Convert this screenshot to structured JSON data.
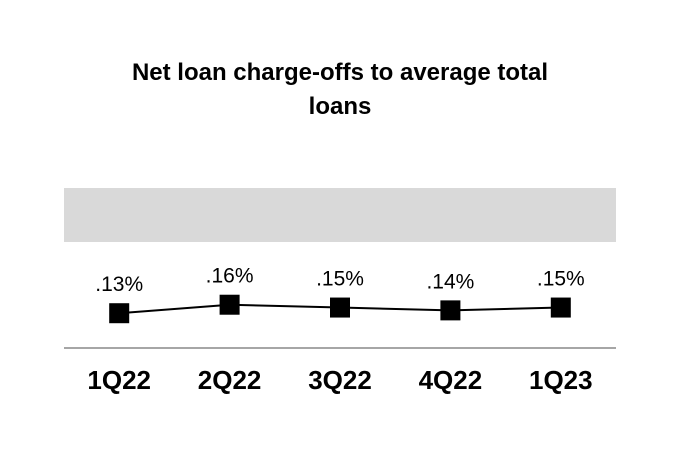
{
  "title_lines": [
    "Net loan charge-offs to average total",
    "loans"
  ],
  "chart_data": {
    "type": "line",
    "title": "Net loan charge-offs to average total loans",
    "categories": [
      "1Q22",
      "2Q22",
      "3Q22",
      "4Q22",
      "1Q23"
    ],
    "values": [
      0.13,
      0.16,
      0.15,
      0.14,
      0.15
    ],
    "data_labels": [
      ".13%",
      ".16%",
      ".15%",
      ".14%",
      ".15%"
    ],
    "unit": "percent",
    "xlabel": "",
    "ylabel": "",
    "ylim": [
      0,
      0.57
    ],
    "grid": false,
    "legend": false,
    "marker_shape": "square",
    "colors": {
      "line": "#000000",
      "marker": "#000000",
      "title_text": "#000000",
      "data_label_text": "#000000",
      "category_label_text": "#000000",
      "highlight_band": "#d9d9d9",
      "axis_line": "#a6a6a6",
      "background": "#ffffff"
    }
  }
}
